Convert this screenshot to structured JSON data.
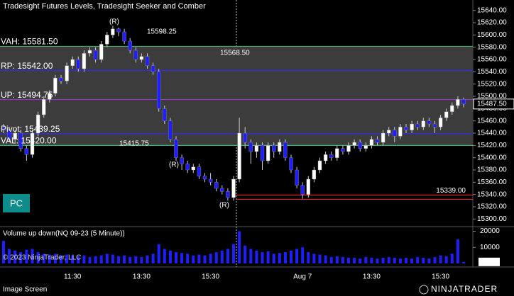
{
  "header": {
    "title": "Tradesight Futures Levels, Tradesight Seeker and Comber",
    "button": "PC"
  },
  "chart_data": {
    "type": "candlestick",
    "categories": [
      null,
      null,
      null,
      null,
      null,
      null,
      null,
      null,
      null,
      null,
      null,
      null,
      "11:30",
      null,
      null,
      null,
      null,
      null,
      null,
      null,
      null,
      null,
      null,
      null,
      "13:30",
      null,
      null,
      null,
      null,
      null,
      null,
      null,
      null,
      null,
      null,
      null,
      "15:30",
      null,
      null,
      null,
      null,
      null,
      null,
      null,
      null,
      null,
      null,
      null,
      null,
      null,
      null,
      null,
      "Aug 7",
      null,
      null,
      null,
      null,
      null,
      null,
      null,
      null,
      null,
      null,
      null,
      "13:30",
      null,
      null,
      null,
      null,
      null,
      null,
      null,
      null,
      null,
      null,
      null,
      "15:30",
      null,
      null,
      null,
      null
    ],
    "open": [
      15450,
      15445,
      15430,
      15440,
      15415,
      15405,
      15440,
      15470,
      15495,
      15505,
      15530,
      15525,
      15550,
      15560,
      15545,
      15570,
      15575,
      15560,
      15585,
      15600,
      15610,
      15605,
      15590,
      15575,
      15560,
      15565,
      15550,
      15540,
      15480,
      15460,
      15430,
      15400,
      15390,
      15380,
      15385,
      15370,
      15365,
      15360,
      15350,
      15345,
      15335,
      15365,
      15440,
      15425,
      15410,
      15420,
      15395,
      15420,
      15410,
      15425,
      15400,
      15380,
      15355,
      15340,
      15365,
      15380,
      15395,
      15405,
      15400,
      15415,
      15410,
      15420,
      15425,
      15415,
      15420,
      15430,
      15425,
      15440,
      15445,
      15435,
      15450,
      15445,
      15455,
      15450,
      15460,
      15455,
      15450,
      15465,
      15475,
      15485,
      15495
    ],
    "high": [
      15455,
      15450,
      15445,
      15445,
      15420,
      15445,
      15475,
      15500,
      15510,
      15535,
      15535,
      15555,
      15565,
      15565,
      15575,
      15580,
      15580,
      15590,
      15605,
      15615,
      15612,
      15610,
      15595,
      15580,
      15570,
      15570,
      15555,
      15545,
      15485,
      15465,
      15435,
      15405,
      15395,
      15390,
      15390,
      15375,
      15375,
      15365,
      15355,
      15350,
      15370,
      15465,
      15450,
      15430,
      15425,
      15425,
      15425,
      15425,
      15430,
      15430,
      15405,
      15385,
      15360,
      15370,
      15385,
      15400,
      15410,
      15410,
      15420,
      15420,
      15425,
      15430,
      15430,
      15425,
      15435,
      15435,
      15445,
      15450,
      15450,
      15455,
      15455,
      15460,
      15460,
      15465,
      15465,
      15460,
      15470,
      15480,
      15490,
      15500,
      15498
    ],
    "low": [
      15440,
      15425,
      15425,
      15410,
      15395,
      15400,
      15435,
      15465,
      15490,
      15500,
      15520,
      15520,
      15545,
      15540,
      15540,
      15565,
      15555,
      15555,
      15580,
      15595,
      15598,
      15585,
      15570,
      15555,
      15555,
      15545,
      15535,
      15475,
      15455,
      15425,
      15395,
      15380,
      15375,
      15375,
      15365,
      15360,
      15355,
      15345,
      15340,
      15330,
      15330,
      15360,
      15415,
      15390,
      15400,
      15380,
      15390,
      15400,
      15405,
      15395,
      15375,
      15350,
      15333,
      15335,
      15360,
      15375,
      15390,
      15395,
      15395,
      15405,
      15405,
      15415,
      15410,
      15410,
      15415,
      15420,
      15420,
      15435,
      15425,
      15430,
      15440,
      15440,
      15445,
      15445,
      15450,
      15440,
      15445,
      15460,
      15470,
      15480,
      15482
    ],
    "close": [
      15445,
      15430,
      15440,
      15415,
      15405,
      15440,
      15470,
      15495,
      15505,
      15530,
      15525,
      15550,
      15560,
      15545,
      15570,
      15575,
      15560,
      15585,
      15600,
      15610,
      15605,
      15590,
      15575,
      15560,
      15565,
      15550,
      15540,
      15480,
      15460,
      15430,
      15400,
      15390,
      15380,
      15385,
      15370,
      15365,
      15360,
      15350,
      15345,
      15335,
      15365,
      15440,
      15425,
      15410,
      15420,
      15395,
      15420,
      15410,
      15425,
      15400,
      15380,
      15355,
      15340,
      15365,
      15380,
      15395,
      15405,
      15400,
      15415,
      15410,
      15420,
      15425,
      15415,
      15420,
      15430,
      15425,
      15440,
      15445,
      15435,
      15450,
      15445,
      15455,
      15450,
      15460,
      15455,
      15450,
      15465,
      15475,
      15485,
      15495,
      15487.5
    ],
    "up_color": "#ffffff",
    "down_color": "#1e1eff",
    "ylim": [
      15290,
      15657
    ],
    "yticks": [
      {
        "value": 15640,
        "label": "15640.00"
      },
      {
        "value": 15620,
        "label": "15620.00"
      },
      {
        "value": 15600,
        "label": "15600.00"
      },
      {
        "value": 15580,
        "label": "15580.00"
      },
      {
        "value": 15560,
        "label": "15560.00"
      },
      {
        "value": 15540,
        "label": "15540.00"
      },
      {
        "value": 15520,
        "label": "15520.00"
      },
      {
        "value": 15500,
        "label": "15500.00"
      },
      {
        "value": 15480,
        "label": "15480.00"
      },
      {
        "value": 15460,
        "label": "15460.00"
      },
      {
        "value": 15440,
        "label": "15440.00"
      },
      {
        "value": 15420,
        "label": "15420.00"
      },
      {
        "value": 15400,
        "label": "15400.00"
      },
      {
        "value": 15380,
        "label": "15380.00"
      },
      {
        "value": 15360,
        "label": "15360.00"
      },
      {
        "value": 15340,
        "label": "15340.00"
      },
      {
        "value": 15320,
        "label": "15320.00"
      },
      {
        "value": 15300,
        "label": "15300.00"
      }
    ],
    "current_price": {
      "value": 15487.5,
      "label": "15487.50"
    },
    "levels": [
      {
        "label": "VAH: 15581.50",
        "value": 15581.5,
        "color": "#3cb371"
      },
      {
        "label": "RP: 15542.00",
        "value": 15542,
        "color": "#2a2aff"
      },
      {
        "label": "UP: 15494.75",
        "value": 15494.75,
        "color": "#9932cc"
      },
      {
        "label": "Pivot: 15439.25",
        "value": 15439.25,
        "color": "#2a2aff"
      },
      {
        "label": "VAL: 15420.00",
        "value": 15420,
        "color": "#3cb371"
      }
    ],
    "target": {
      "label": "15339.00",
      "value": 15339,
      "color": "#ff2020"
    },
    "value_area_color": "#3c3c3c",
    "annotations": [
      {
        "text": "15598.25",
        "color": "#3cb371"
      },
      {
        "text": "15568.50",
        "color": "#2e6b2e"
      },
      {
        "text": "15415.75",
        "color": "#ff2020"
      }
    ],
    "signals": [
      "(R)",
      "(R)",
      "(R)"
    ],
    "signal_color": "#ff2020",
    "volume": {
      "title": "Volume up down(NQ 09-23 (5 Minute))",
      "values": [
        14000,
        9000,
        8000,
        7000,
        8500,
        9000,
        7000,
        6000,
        5500,
        6000,
        5000,
        5500,
        5000,
        4500,
        5000,
        4000,
        4500,
        5000,
        6000,
        5500,
        4500,
        5000,
        4000,
        4500,
        4000,
        5000,
        6000,
        12000,
        9000,
        8000,
        7000,
        6500,
        6000,
        5000,
        5500,
        5000,
        6000,
        7000,
        8000,
        9000,
        12000,
        20000,
        11000,
        9000,
        8000,
        7000,
        7500,
        6000,
        6500,
        7000,
        8000,
        9000,
        10000,
        7000,
        6000,
        5500,
        5000,
        4000,
        4500,
        4000,
        3500,
        3500,
        3000,
        4000,
        3500,
        3000,
        3500,
        4000,
        3500,
        3000,
        3500,
        3000,
        4000,
        3500,
        3000,
        4000,
        5000,
        4500,
        6000,
        15000,
        944
      ],
      "color": "#1e1eff",
      "ylim": [
        0,
        22000
      ],
      "yticks": [
        20000,
        10000
      ]
    }
  },
  "footer": {
    "copyright": "© 2023 NinjaTrader, LLC",
    "status": "Image Screen",
    "brand": "NINJATRADER"
  }
}
